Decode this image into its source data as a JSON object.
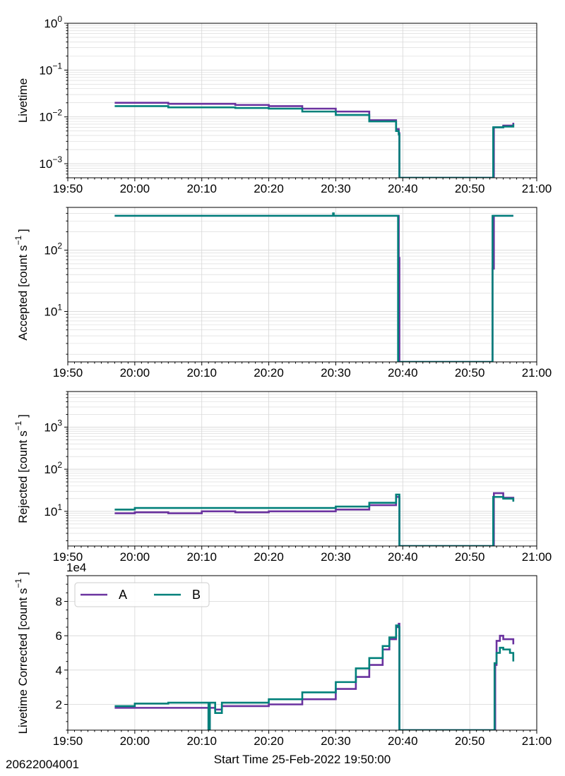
{
  "footer": {
    "obs_id": "20622004001",
    "xlabel": "Start Time 25-Feb-2022 19:50:00"
  },
  "legend": {
    "entries": [
      {
        "name": "A",
        "color": "#6a329f"
      },
      {
        "name": "B",
        "color": "#00807a"
      }
    ]
  },
  "chart_data": [
    {
      "type": "line",
      "ylabel": "Livetime",
      "yscale": "log",
      "ylim": [
        0.0005,
        1
      ],
      "yticks": [
        {
          "value": 0.001,
          "mant": "10",
          "exp": "−3"
        },
        {
          "value": 0.01,
          "mant": "10",
          "exp": "−2"
        },
        {
          "value": 0.1,
          "mant": "10",
          "exp": "−1"
        },
        {
          "value": 1,
          "mant": "10",
          "exp": "0"
        }
      ],
      "xlim": [
        "19:50",
        "21:00"
      ],
      "xticks": [
        "19:50",
        "20:00",
        "20:10",
        "20:20",
        "20:30",
        "20:40",
        "20:50",
        "21:00"
      ],
      "grid": true,
      "series": [
        {
          "name": "A",
          "color": "#6a329f",
          "points": [
            [
              "19:57",
              0.02
            ],
            [
              "20:05",
              0.019
            ],
            [
              "20:15",
              0.018
            ],
            [
              "20:20",
              0.017
            ],
            [
              "20:25",
              0.015
            ],
            [
              "20:30",
              0.013
            ],
            [
              "20:35",
              0.0085
            ],
            [
              "20:39",
              0.0055
            ],
            [
              "20:39.4",
              0.0045
            ],
            [
              "20:39.5",
              0.0005
            ],
            [
              "20:53.5",
              0.0005
            ],
            [
              "20:53.6",
              0.006
            ],
            [
              "20:55",
              0.0065
            ],
            [
              "20:56.5",
              0.0075
            ]
          ]
        },
        {
          "name": "B",
          "color": "#00807a",
          "points": [
            [
              "19:57",
              0.017
            ],
            [
              "20:05",
              0.016
            ],
            [
              "20:15",
              0.0155
            ],
            [
              "20:20",
              0.015
            ],
            [
              "20:25",
              0.013
            ],
            [
              "20:30",
              0.011
            ],
            [
              "20:35",
              0.008
            ],
            [
              "20:39",
              0.005
            ],
            [
              "20:39.4",
              0.0042
            ],
            [
              "20:39.5",
              0.0005
            ],
            [
              "20:53.4",
              0.0005
            ],
            [
              "20:53.5",
              0.006
            ],
            [
              "20:55",
              0.0062
            ],
            [
              "20:56.5",
              0.007
            ]
          ]
        }
      ]
    },
    {
      "type": "line",
      "ylabel": "Accepted [count s",
      "ylabel_sup": "−1",
      "ylabel_end": "]",
      "yscale": "log",
      "ylim": [
        1.5,
        500
      ],
      "yticks": [
        {
          "value": 10,
          "mant": "10",
          "exp": "1"
        },
        {
          "value": 100,
          "mant": "10",
          "exp": "2"
        }
      ],
      "xlim": [
        "19:50",
        "21:00"
      ],
      "xticks": [
        "19:50",
        "20:00",
        "20:10",
        "20:20",
        "20:30",
        "20:40",
        "20:50",
        "21:00"
      ],
      "grid": true,
      "series": [
        {
          "name": "A",
          "color": "#6a329f",
          "points": [
            [
              "19:57",
              365
            ],
            [
              "20:39.3",
              365
            ],
            [
              "20:39.4",
              75
            ],
            [
              "20:39.5",
              1.5
            ],
            [
              "20:53.3",
              1.5
            ],
            [
              "20:53.4",
              50
            ],
            [
              "20:53.6",
              365
            ],
            [
              "20:56.5",
              365
            ]
          ]
        },
        {
          "name": "B",
          "color": "#00807a",
          "points": [
            [
              "19:57",
              365
            ],
            [
              "20:29.5",
              365
            ],
            [
              "20:29.6",
              400
            ],
            [
              "20:29.7",
              365
            ],
            [
              "20:39.2",
              365
            ],
            [
              "20:39.3",
              1.5
            ],
            [
              "20:53.3",
              1.5
            ],
            [
              "20:53.4",
              365
            ],
            [
              "20:56.5",
              365
            ]
          ]
        }
      ]
    },
    {
      "type": "line",
      "ylabel": "Rejected [count s",
      "ylabel_sup": "−1",
      "ylabel_end": "]",
      "yscale": "log",
      "ylim": [
        1.5,
        7000
      ],
      "yticks": [
        {
          "value": 10,
          "mant": "10",
          "exp": "1"
        },
        {
          "value": 100,
          "mant": "10",
          "exp": "2"
        },
        {
          "value": 1000,
          "mant": "10",
          "exp": "3"
        }
      ],
      "xlim": [
        "19:50",
        "21:00"
      ],
      "xticks": [
        "19:50",
        "20:00",
        "20:10",
        "20:20",
        "20:30",
        "20:40",
        "20:50",
        "21:00"
      ],
      "grid": true,
      "series": [
        {
          "name": "A",
          "color": "#6a329f",
          "points": [
            [
              "19:57",
              9
            ],
            [
              "20:00",
              9.5
            ],
            [
              "20:05",
              9
            ],
            [
              "20:10",
              10
            ],
            [
              "20:15",
              9.5
            ],
            [
              "20:20",
              10
            ],
            [
              "20:25",
              10
            ],
            [
              "20:30",
              11
            ],
            [
              "20:35",
              14
            ],
            [
              "20:39",
              22
            ],
            [
              "20:39.4",
              22
            ],
            [
              "20:39.5",
              1.5
            ],
            [
              "20:53.5",
              1.5
            ],
            [
              "20:53.6",
              27
            ],
            [
              "20:55",
              21
            ],
            [
              "20:56.5",
              18
            ]
          ]
        },
        {
          "name": "B",
          "color": "#00807a",
          "points": [
            [
              "19:57",
              11
            ],
            [
              "20:00",
              12
            ],
            [
              "20:05",
              12
            ],
            [
              "20:10",
              12
            ],
            [
              "20:15",
              12
            ],
            [
              "20:20",
              12
            ],
            [
              "20:25",
              12
            ],
            [
              "20:30",
              13
            ],
            [
              "20:35",
              16
            ],
            [
              "20:39",
              25
            ],
            [
              "20:39.4",
              25
            ],
            [
              "20:39.5",
              1.5
            ],
            [
              "20:53.4",
              1.5
            ],
            [
              "20:53.5",
              22
            ],
            [
              "20:55",
              20
            ],
            [
              "20:56.5",
              17
            ]
          ]
        }
      ]
    },
    {
      "type": "line",
      "ylabel": "Livetime Corrected [count s",
      "ylabel_sup": "−1",
      "ylabel_end": "]",
      "yscale": "linear",
      "offset_text": "1e4",
      "ylim": [
        0.5,
        9.5
      ],
      "yticks": [
        {
          "value": 2,
          "text": "2"
        },
        {
          "value": 4,
          "text": "4"
        },
        {
          "value": 6,
          "text": "6"
        },
        {
          "value": 8,
          "text": "8"
        }
      ],
      "xlim": [
        "19:50",
        "21:00"
      ],
      "xticks": [
        "19:50",
        "20:00",
        "20:10",
        "20:20",
        "20:30",
        "20:40",
        "20:50",
        "21:00"
      ],
      "grid": true,
      "legend": "upper left",
      "series": [
        {
          "name": "A",
          "color": "#6a329f",
          "points": [
            [
              "19:57",
              1.8
            ],
            [
              "20:00",
              1.8
            ],
            [
              "20:05",
              1.8
            ],
            [
              "20:10",
              1.8
            ],
            [
              "20:11",
              0.5
            ],
            [
              "20:11.2",
              1.8
            ],
            [
              "20:12",
              1.7
            ],
            [
              "20:13",
              1.9
            ],
            [
              "20:20",
              2.0
            ],
            [
              "20:25",
              2.3
            ],
            [
              "20:30",
              2.9
            ],
            [
              "20:33",
              3.6
            ],
            [
              "20:35",
              4.3
            ],
            [
              "20:37",
              5.2
            ],
            [
              "20:38",
              5.8
            ],
            [
              "20:39",
              6.5
            ],
            [
              "20:39.4",
              6.7
            ],
            [
              "20:39.5",
              0.5
            ],
            [
              "20:53.7",
              0.5
            ],
            [
              "20:53.8",
              4.3
            ],
            [
              "20:54",
              5.7
            ],
            [
              "20:54.5",
              6.0
            ],
            [
              "20:55",
              5.8
            ],
            [
              "20:56",
              5.8
            ],
            [
              "20:56.5",
              5.5
            ]
          ]
        },
        {
          "name": "B",
          "color": "#00807a",
          "points": [
            [
              "19:57",
              1.9
            ],
            [
              "20:00",
              2.05
            ],
            [
              "20:05",
              2.1
            ],
            [
              "20:10",
              2.1
            ],
            [
              "20:11",
              0.5
            ],
            [
              "20:11.2",
              2.1
            ],
            [
              "20:12",
              1.5
            ],
            [
              "20:13",
              2.1
            ],
            [
              "20:20",
              2.3
            ],
            [
              "20:25",
              2.7
            ],
            [
              "20:30",
              3.3
            ],
            [
              "20:33",
              4.1
            ],
            [
              "20:35",
              4.7
            ],
            [
              "20:37",
              5.4
            ],
            [
              "20:38",
              5.9
            ],
            [
              "20:39",
              6.6
            ],
            [
              "20:39.4",
              6.5
            ],
            [
              "20:39.5",
              0.5
            ],
            [
              "20:53.6",
              0.5
            ],
            [
              "20:53.7",
              4.4
            ],
            [
              "20:54",
              5.0
            ],
            [
              "20:54.5",
              5.3
            ],
            [
              "20:55",
              5.2
            ],
            [
              "20:56",
              5.0
            ],
            [
              "20:56.5",
              4.5
            ]
          ]
        }
      ]
    }
  ]
}
